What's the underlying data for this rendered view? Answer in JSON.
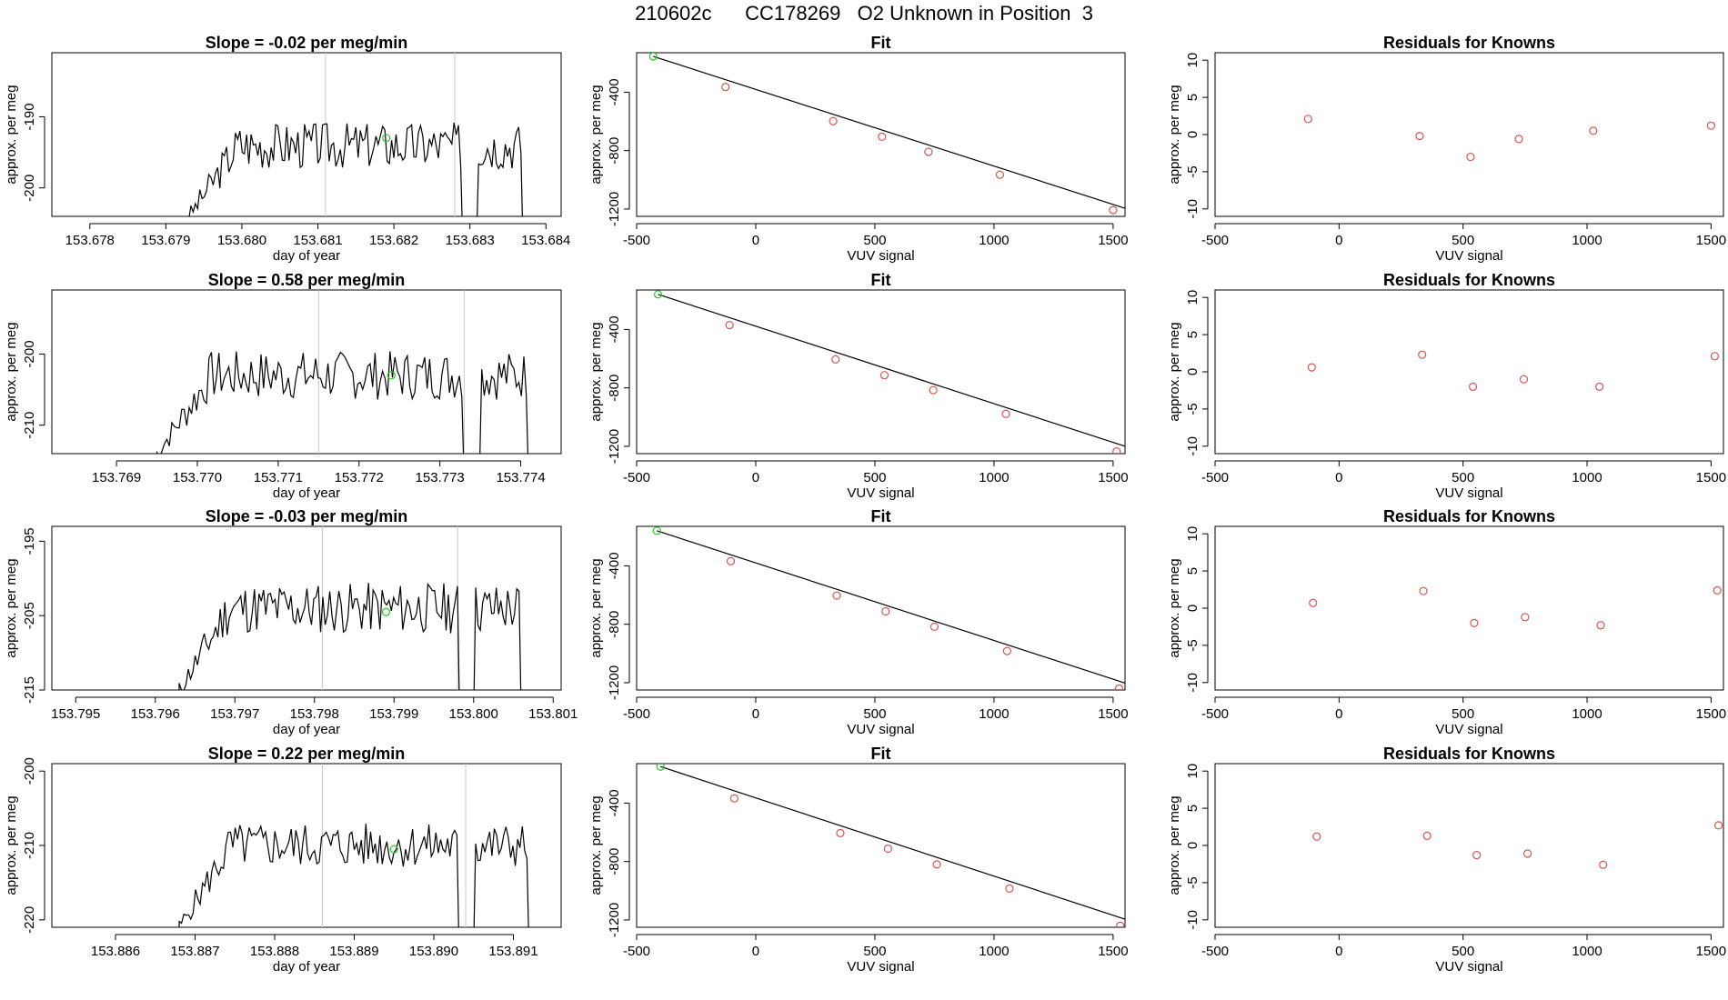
{
  "page_title": "210602c      CC178269   O2 Unknown in Position  3",
  "colors": {
    "trace": "#000000",
    "vline": "#c8c8c8",
    "known": "#d9534f",
    "unknown": "#22cc22",
    "fit": "#000000"
  },
  "chart_data": [
    {
      "type": "line",
      "title": "Slope =  -0.02  per meg/min",
      "xlabel": "day of year",
      "ylabel": "approx. per meg",
      "xlim": [
        153.6775,
        153.6842
      ],
      "ylim": [
        -204,
        -181
      ],
      "xticks": [
        "153.678",
        "153.679",
        "153.680",
        "153.681",
        "153.682",
        "153.683",
        "153.684"
      ],
      "yticks": [
        "-190",
        "-200"
      ],
      "vlines": [
        153.6811,
        153.6828
      ],
      "start": 153.6793,
      "end": 153.6837,
      "dip": [
        153.6829,
        153.6831
      ],
      "trace_start_value": -204,
      "plateau": -194,
      "amplitude": 2.2,
      "seed": 3,
      "unknown_point": {
        "x": 153.6819,
        "y": -193
      }
    },
    {
      "type": "line",
      "title": "Fit",
      "xlabel": "VUV signal",
      "ylabel": "approx. per meg",
      "xlim": [
        -500,
        1550
      ],
      "ylim": [
        -1250,
        -130
      ],
      "xticks": [
        "-500",
        "0",
        "500",
        "1000",
        "1500"
      ],
      "yticks": [
        "-400",
        "-800",
        "-1200"
      ],
      "fit_line": {
        "x": [
          -430,
          1560
        ],
        "y": [
          -155,
          -1200
        ]
      },
      "knowns": {
        "x": [
          -127,
          325,
          530,
          725,
          1025,
          1500
        ],
        "y": [
          -365,
          -598,
          -705,
          -808,
          -965,
          -1207
        ]
      },
      "unknown": {
        "x": -430,
        "y": -155
      }
    },
    {
      "type": "scatter",
      "title": "Residuals for Knowns",
      "xlabel": "VUV signal",
      "ylabel": "approx. per meg",
      "xlim": [
        -500,
        1550
      ],
      "ylim": [
        -11,
        11
      ],
      "xticks": [
        "-500",
        "0",
        "500",
        "1000",
        "1500"
      ],
      "yticks": [
        "10",
        "5",
        "0",
        "-5",
        "-10"
      ],
      "x": [
        -125,
        325,
        530,
        725,
        1025,
        1500
      ],
      "y": [
        2.1,
        -0.2,
        -3.0,
        -0.6,
        0.5,
        1.2
      ]
    },
    {
      "type": "line",
      "title": "Slope =  0.58  per meg/min",
      "xlabel": "day of year",
      "ylabel": "approx. per meg",
      "xlim": [
        153.7682,
        153.7745
      ],
      "ylim": [
        -214,
        -191
      ],
      "xticks": [
        "153.769",
        "153.770",
        "153.771",
        "153.772",
        "153.773",
        "153.774"
      ],
      "yticks": [
        "-200",
        "-210"
      ],
      "vlines": [
        153.7715,
        153.7733
      ],
      "start": 153.7695,
      "end": 153.7741,
      "dip": [
        153.7733,
        153.7735
      ],
      "trace_start_value": -214,
      "plateau": -203,
      "amplitude": 2.3,
      "seed": 7,
      "unknown_point": {
        "x": 153.7724,
        "y": -203
      }
    },
    {
      "type": "line",
      "title": "Fit",
      "xlabel": "VUV signal",
      "ylabel": "approx. per meg",
      "xlim": [
        -500,
        1550
      ],
      "ylim": [
        -1250,
        -130
      ],
      "xticks": [
        "-500",
        "0",
        "500",
        "1000",
        "1500"
      ],
      "yticks": [
        "-400",
        "-800",
        "-1200"
      ],
      "fit_line": {
        "x": [
          -410,
          1560
        ],
        "y": [
          -160,
          -1205
        ]
      },
      "knowns": {
        "x": [
          -110,
          335,
          540,
          745,
          1050,
          1515
        ],
        "y": [
          -370,
          -605,
          -713,
          -815,
          -978,
          -1235
        ]
      },
      "unknown": {
        "x": -410,
        "y": -160
      }
    },
    {
      "type": "scatter",
      "title": "Residuals for Knowns",
      "xlabel": "VUV signal",
      "ylabel": "approx. per meg",
      "xlim": [
        -500,
        1550
      ],
      "ylim": [
        -11,
        11
      ],
      "xticks": [
        "-500",
        "0",
        "500",
        "1000",
        "1500"
      ],
      "yticks": [
        "10",
        "5",
        "0",
        "-5",
        "-10"
      ],
      "x": [
        -110,
        335,
        540,
        745,
        1050,
        1515
      ],
      "y": [
        0.6,
        2.3,
        -2.0,
        -1.0,
        -2.0,
        2.1
      ]
    },
    {
      "type": "line",
      "title": "Slope =  -0.03  per meg/min",
      "xlabel": "day of year",
      "ylabel": "approx. per meg",
      "xlim": [
        153.7947,
        153.8011
      ],
      "ylim": [
        -215,
        -193
      ],
      "xticks": [
        "153.795",
        "153.796",
        "153.797",
        "153.798",
        "153.799",
        "153.800",
        "153.801"
      ],
      "yticks": [
        "-195",
        "-205",
        "-215"
      ],
      "vlines": [
        153.7981,
        153.7998
      ],
      "start": 153.7963,
      "end": 153.8006,
      "dip": [
        153.7998,
        153.8
      ],
      "trace_start_value": -215,
      "plateau": -204,
      "amplitude": 2.3,
      "seed": 11,
      "unknown_point": {
        "x": 153.7989,
        "y": -204.5
      }
    },
    {
      "type": "line",
      "title": "Fit",
      "xlabel": "VUV signal",
      "ylabel": "approx. per meg",
      "xlim": [
        -500,
        1550
      ],
      "ylim": [
        -1250,
        -130
      ],
      "xticks": [
        "-500",
        "0",
        "500",
        "1000",
        "1500"
      ],
      "yticks": [
        "-400",
        "-800",
        "-1200"
      ],
      "fit_line": {
        "x": [
          -415,
          1560
        ],
        "y": [
          -160,
          -1208
        ]
      },
      "knowns": {
        "x": [
          -105,
          340,
          545,
          750,
          1055,
          1525
        ],
        "y": [
          -368,
          -604,
          -712,
          -817,
          -983,
          -1240
        ]
      },
      "unknown": {
        "x": -415,
        "y": -160
      }
    },
    {
      "type": "scatter",
      "title": "Residuals for Knowns",
      "xlabel": "VUV signal",
      "ylabel": "approx. per meg",
      "xlim": [
        -500,
        1550
      ],
      "ylim": [
        -11,
        11
      ],
      "xticks": [
        "-500",
        "0",
        "500",
        "1000",
        "1500"
      ],
      "yticks": [
        "10",
        "5",
        "0",
        "-5",
        "-10"
      ],
      "x": [
        -105,
        340,
        545,
        750,
        1055,
        1525
      ],
      "y": [
        0.7,
        2.3,
        -2.0,
        -1.2,
        -2.3,
        2.4
      ]
    },
    {
      "type": "line",
      "title": "Slope =  0.22  per meg/min",
      "xlabel": "day of year",
      "ylabel": "approx. per meg",
      "xlim": [
        153.8852,
        153.8916
      ],
      "ylim": [
        -221,
        -199
      ],
      "xticks": [
        "153.886",
        "153.887",
        "153.888",
        "153.889",
        "153.890",
        "153.891"
      ],
      "yticks": [
        "-200",
        "-210",
        "-220"
      ],
      "vlines": [
        153.8886,
        153.8904
      ],
      "start": 153.8868,
      "end": 153.8912,
      "dip": [
        153.8903,
        153.8905
      ],
      "trace_start_value": -221,
      "plateau": -210,
      "amplitude": 2.0,
      "seed": 5,
      "unknown_point": {
        "x": 153.8895,
        "y": -210.5
      }
    },
    {
      "type": "line",
      "title": "Fit",
      "xlabel": "VUV signal",
      "ylabel": "approx. per meg",
      "xlim": [
        -500,
        1550
      ],
      "ylim": [
        -1250,
        -130
      ],
      "xticks": [
        "-500",
        "0",
        "500",
        "1000",
        "1500"
      ],
      "yticks": [
        "-400",
        "-800",
        "-1200"
      ],
      "fit_line": {
        "x": [
          -400,
          1560
        ],
        "y": [
          -150,
          -1200
        ]
      },
      "knowns": {
        "x": [
          -90,
          355,
          555,
          760,
          1065,
          1530
        ],
        "y": [
          -368,
          -605,
          -712,
          -820,
          -985,
          -1240
        ]
      },
      "unknown": {
        "x": -400,
        "y": -150
      }
    },
    {
      "type": "scatter",
      "title": "Residuals for Knowns",
      "xlabel": "VUV signal",
      "ylabel": "approx. per meg",
      "xlim": [
        -500,
        1550
      ],
      "ylim": [
        -11,
        11
      ],
      "xticks": [
        "-500",
        "0",
        "500",
        "1000",
        "1500"
      ],
      "yticks": [
        "10",
        "5",
        "0",
        "-5",
        "-10"
      ],
      "x": [
        -90,
        355,
        555,
        760,
        1065,
        1530
      ],
      "y": [
        1.2,
        1.3,
        -1.3,
        -1.1,
        -2.6,
        2.7
      ]
    }
  ]
}
